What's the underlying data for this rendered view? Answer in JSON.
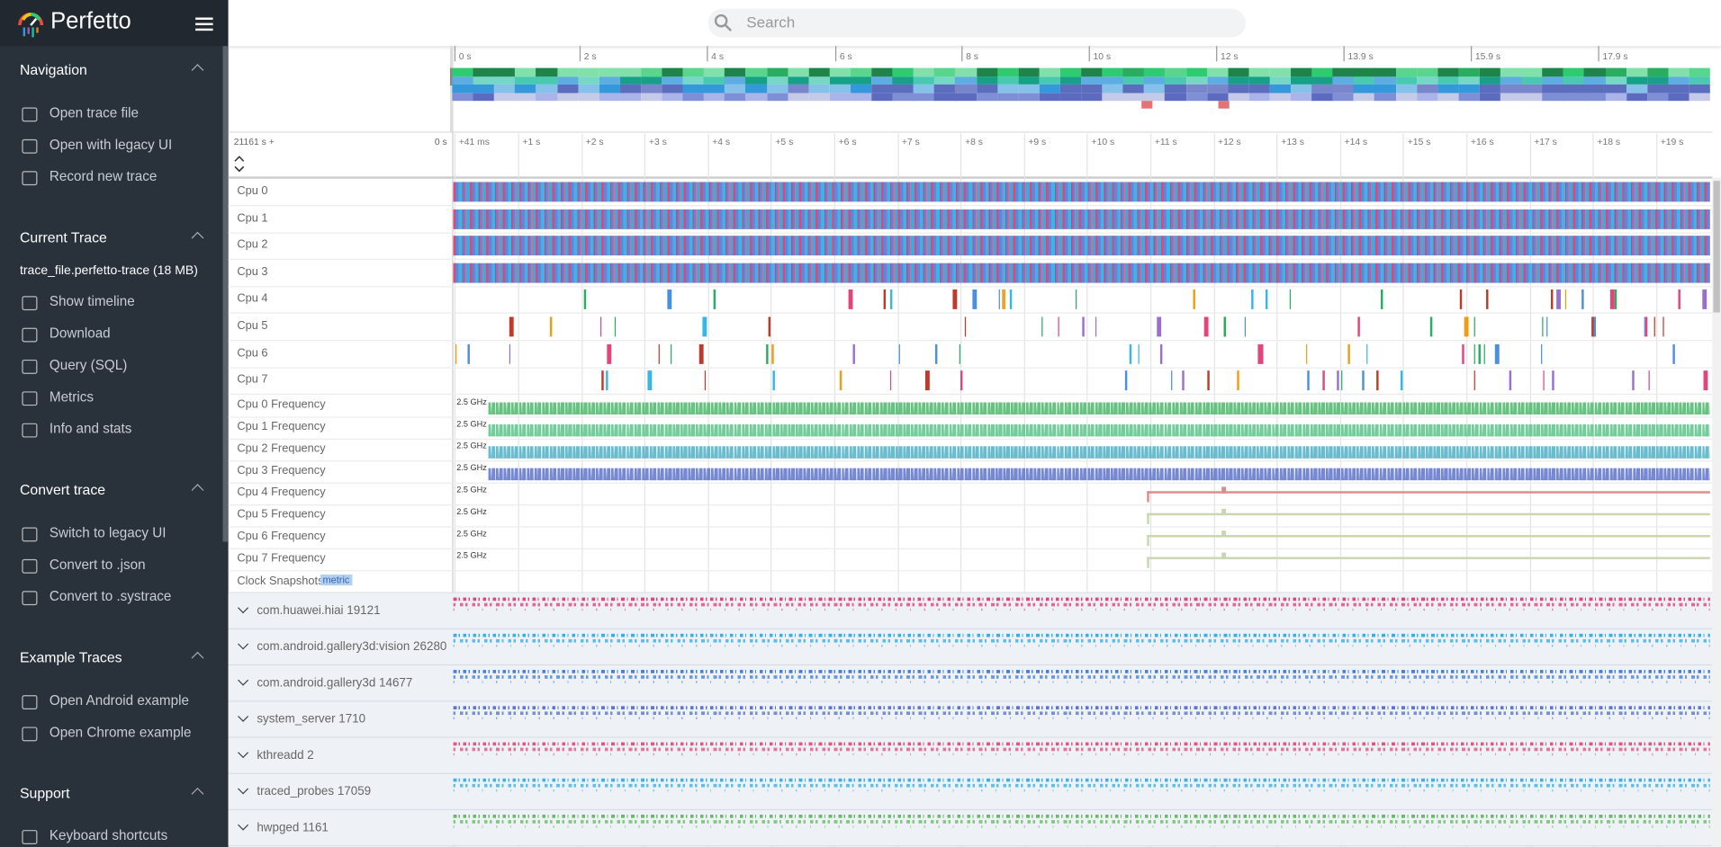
{
  "sidebar": {
    "logo": "Perfetto",
    "sections": [
      {
        "title": "Navigation",
        "items": [
          "Open trace file",
          "Open with legacy UI",
          "Record new trace"
        ]
      },
      {
        "title": "Current Trace",
        "file": "trace_file.perfetto-trace (18 MB)",
        "items": [
          "Show timeline",
          "Download",
          "Query (SQL)",
          "Metrics",
          "Info and stats"
        ]
      },
      {
        "title": "Convert trace",
        "items": [
          "Switch to legacy UI",
          "Convert to .json",
          "Convert to .systrace"
        ]
      },
      {
        "title": "Example Traces",
        "items": [
          "Open Android example",
          "Open Chrome example"
        ]
      },
      {
        "title": "Support",
        "items": [
          "Keyboard shortcuts"
        ]
      }
    ]
  },
  "search": {
    "placeholder": "Search"
  },
  "overview": {
    "ticks": [
      "0 s",
      "2 s",
      "4 s",
      "6 s",
      "8 s",
      "10 s",
      "12 s",
      "13.9 s",
      "15.9 s",
      "17.9 s"
    ]
  },
  "timeline": {
    "offset": "21161 s +",
    "origin": "0 s",
    "ticks": [
      "+41 ms",
      "+1 s",
      "+2 s",
      "+3 s",
      "+4 s",
      "+5 s",
      "+6 s",
      "+7 s",
      "+8 s",
      "+9 s",
      "+10 s",
      "+11 s",
      "+12 s",
      "+13 s",
      "+14 s",
      "+15 s",
      "+16 s",
      "+17 s",
      "+18 s",
      "+19 s"
    ]
  },
  "tracks": {
    "cpu": [
      "Cpu 0",
      "Cpu 1",
      "Cpu 2",
      "Cpu 3",
      "Cpu 4",
      "Cpu 5",
      "Cpu 6",
      "Cpu 7"
    ],
    "frequency": {
      "label": "2.5 GHz",
      "names": [
        "Cpu 0 Frequency",
        "Cpu 1 Frequency",
        "Cpu 2 Frequency",
        "Cpu 3 Frequency",
        "Cpu 4 Frequency",
        "Cpu 5 Frequency",
        "Cpu 6 Frequency",
        "Cpu 7 Frequency"
      ]
    },
    "clock": {
      "name": "Clock Snapshots",
      "badge": "metric"
    },
    "processes": [
      "com.huawei.hiai 19121",
      "com.android.gallery3d:vision 26280",
      "com.android.gallery3d 14677",
      "system_server 1710",
      "kthreadd 2",
      "traced_probes 17059",
      "hwpged 1161"
    ]
  }
}
